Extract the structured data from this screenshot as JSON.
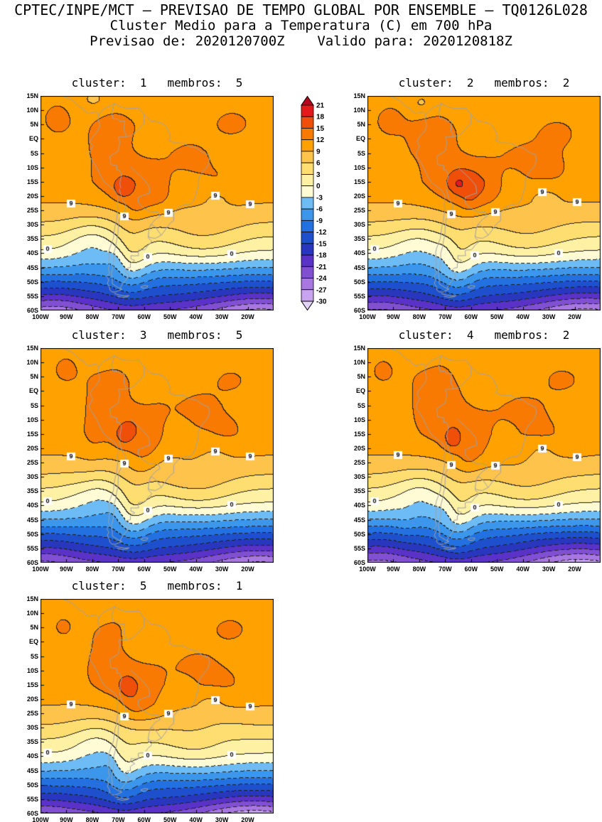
{
  "header": {
    "line1": "CPTEC/INPE/MCT — PREVISAO DE TEMPO GLOBAL POR ENSEMBLE — TQ0126L028",
    "line2": "Cluster Medio para a Temperatura (C) em 700 hPa",
    "line3": "Previsao de: 2020120700Z    Valido para: 2020120818Z"
  },
  "axes": {
    "lat_ticks": [
      "15N",
      "10N",
      "5N",
      "EQ",
      "5S",
      "10S",
      "15S",
      "20S",
      "25S",
      "30S",
      "35S",
      "40S",
      "45S",
      "50S",
      "55S",
      "60S"
    ],
    "lon_ticks": [
      "100W",
      "90W",
      "80W",
      "70W",
      "60W",
      "50W",
      "40W",
      "30W",
      "20W"
    ]
  },
  "colorbar": {
    "labels": [
      "21",
      "18",
      "15",
      "12",
      "9",
      "6",
      "3",
      "0",
      "-3",
      "-6",
      "-9",
      "-12",
      "-15",
      "-18",
      "-21",
      "-24",
      "-27",
      "-30"
    ],
    "colors": [
      "#e31a1c",
      "#ef4f09",
      "#f97a02",
      "#ffa101",
      "#fec34b",
      "#fedd71",
      "#fff1a3",
      "#fffbd4",
      "#6ebcf5",
      "#3c96eb",
      "#2371e0",
      "#1e50cd",
      "#2837be",
      "#5a32c8",
      "#8150d2",
      "#a878e0",
      "#c9a4ee"
    ],
    "arrow_top_color": "#b5071c",
    "arrow_bottom_color": "#e3d2f7"
  },
  "panels": [
    {
      "cluster": "1",
      "membros": "5",
      "title": "cluster:  1   membros:  5"
    },
    {
      "cluster": "2",
      "membros": "2",
      "title": "cluster:  2   membros:  2"
    },
    {
      "cluster": "3",
      "membros": "5",
      "title": "cluster:  3   membros:  5"
    },
    {
      "cluster": "4",
      "membros": "2",
      "title": "cluster:  4   membros:  2"
    },
    {
      "cluster": "5",
      "membros": "1",
      "title": "cluster:  5   membros:  1"
    }
  ],
  "chart_data": {
    "type": "heatmap",
    "subtype": "filled-contour-map-multipanel",
    "institution": "CPTEC/INPE/MCT",
    "product": "PREVISAO DE TEMPO GLOBAL POR ENSEMBLE - TQ0126L028",
    "title": "Cluster Medio para a Temperatura (C) em 700 hPa",
    "variable": "Temperatura",
    "units": "C",
    "pressure_level_hPa": 700,
    "forecast_init": "2020120700Z",
    "forecast_valid": "2020120818Z",
    "region": {
      "lon_min_deg": -100,
      "lon_max_deg": -10,
      "lat_min_deg": -60,
      "lat_max_deg": 15
    },
    "contour_interval_C": 3,
    "shade_levels_C": [
      -30,
      -27,
      -24,
      -21,
      -18,
      -15,
      -12,
      -9,
      -6,
      -3,
      0,
      3,
      6,
      9,
      12,
      15,
      18,
      21
    ],
    "labeled_contours_C": [
      9,
      0
    ],
    "panels": [
      {
        "cluster": 1,
        "membros": 5
      },
      {
        "cluster": 2,
        "membros": 2
      },
      {
        "cluster": 3,
        "membros": 5
      },
      {
        "cluster": 4,
        "membros": 2
      },
      {
        "cluster": 5,
        "membros": 1
      }
    ],
    "zonal_mean_temperature_estimate_C": [
      [
        15,
        10.2
      ],
      [
        5,
        10.6
      ],
      [
        -5,
        10.8
      ],
      [
        -15,
        10.4
      ],
      [
        -22,
        9.2
      ],
      [
        -27,
        7.2
      ],
      [
        -31,
        5.0
      ],
      [
        -35,
        2.5
      ],
      [
        -39,
        0.0
      ],
      [
        -43,
        -3.5
      ],
      [
        -47,
        -7.5
      ],
      [
        -51,
        -11.5
      ],
      [
        -55,
        -15.0
      ],
      [
        -60,
        -20.5
      ]
    ],
    "pattern_notes": "Warm (9 to 18 C) over tropical South America with warmest cores along the Andes and central Brazil; temperature decreases poleward through yellow bands (0-9 C) near 30S-40S, a warm tongue extends south over Patagonia near 65W, and cold air (below -18 C, purple below -24 C) covers the far south, deepest in the southeast corner.",
    "palette": [
      {
        "range": "< -30",
        "color": "#e3d2f7"
      },
      {
        "range": "-30..-27",
        "color": "#c9a4ee"
      },
      {
        "range": "-27..-24",
        "color": "#a878e0"
      },
      {
        "range": "-24..-21",
        "color": "#8150d2"
      },
      {
        "range": "-21..-18",
        "color": "#5a32c8"
      },
      {
        "range": "-18..-15",
        "color": "#2837be"
      },
      {
        "range": "-15..-12",
        "color": "#1e50cd"
      },
      {
        "range": "-12..-9",
        "color": "#2371e0"
      },
      {
        "range": "-9..-6",
        "color": "#3c96eb"
      },
      {
        "range": "-6..-3",
        "color": "#6ebcf5"
      },
      {
        "range": "-3..0",
        "color": "#fffbd4"
      },
      {
        "range": "0..3",
        "color": "#fff1a3"
      },
      {
        "range": "3..6",
        "color": "#fedd71"
      },
      {
        "range": "6..9",
        "color": "#fec34b"
      },
      {
        "range": "9..12",
        "color": "#ffa101"
      },
      {
        "range": "12..15",
        "color": "#f97a02"
      },
      {
        "range": "15..18",
        "color": "#ef4f09"
      },
      {
        "range": "18..21",
        "color": "#e31a1c"
      },
      {
        "range": "> 21",
        "color": "#b5071c"
      }
    ]
  }
}
